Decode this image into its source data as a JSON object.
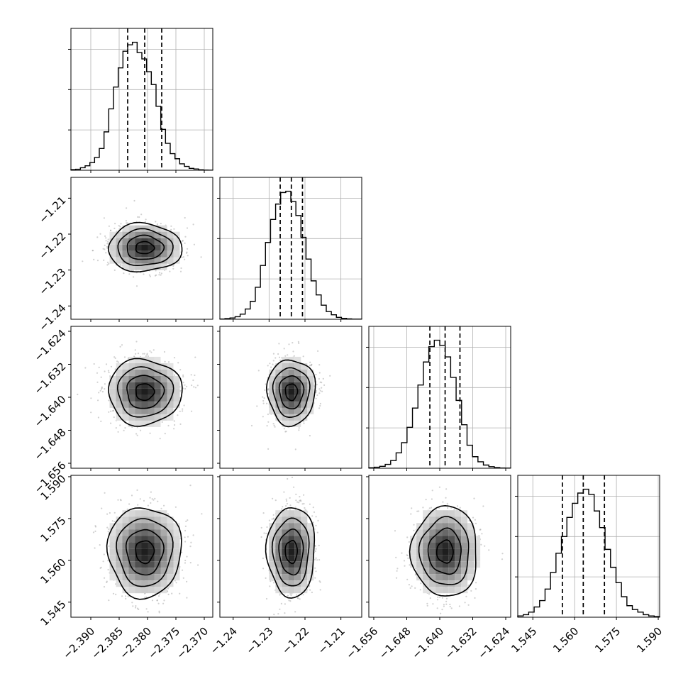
{
  "chart_data": {
    "type": "corner",
    "variables": [
      {
        "index": 0,
        "range": [
          -2.3935,
          -2.3685
        ],
        "ticks": [
          -2.39,
          -2.385,
          -2.38,
          -2.375,
          -2.37
        ],
        "tick_labels": [
          "−2.390",
          "−2.385",
          "−2.380",
          "−2.375",
          "−2.370"
        ],
        "quantiles": [
          -2.3835,
          -2.3805,
          -2.3775
        ],
        "center": -2.3805,
        "sigma": 0.003
      },
      {
        "index": 1,
        "range": [
          -1.2437,
          -1.2042
        ],
        "ticks": [
          -1.24,
          -1.23,
          -1.22,
          -1.21
        ],
        "tick_labels": [
          "−1.24",
          "−1.23",
          "−1.22",
          "−1.21"
        ],
        "quantiles": [
          -1.2269,
          -1.2238,
          -1.2207
        ],
        "center": -1.2238,
        "sigma": 0.0031
      },
      {
        "index": 2,
        "range": [
          -1.6572,
          -1.6228
        ],
        "ticks": [
          -1.656,
          -1.648,
          -1.64,
          -1.632,
          -1.624
        ],
        "tick_labels": [
          "−1.656",
          "−1.648",
          "−1.640",
          "−1.632",
          "−1.624"
        ],
        "quantiles": [
          -1.6424,
          -1.6387,
          -1.6351
        ],
        "center": -1.6387,
        "sigma": 0.0037
      },
      {
        "index": 3,
        "range": [
          1.5396,
          1.5905
        ],
        "ticks": [
          1.545,
          1.56,
          1.575,
          1.59
        ],
        "tick_labels": [
          "1.545",
          "1.560",
          "1.575",
          "1.590"
        ],
        "quantiles": [
          1.5556,
          1.5631,
          1.5707
        ],
        "center": 1.5631,
        "sigma": 0.0075
      }
    ],
    "histograms": [
      {
        "var": 0,
        "counts": [
          0.005,
          0.008,
          0.02,
          0.035,
          0.06,
          0.1,
          0.17,
          0.3,
          0.48,
          0.65,
          0.8,
          0.93,
          0.98,
          1.0,
          0.92,
          0.87,
          0.77,
          0.67,
          0.5,
          0.32,
          0.21,
          0.13,
          0.09,
          0.05,
          0.03,
          0.015,
          0.01,
          0.004,
          0.002,
          0.001
        ]
      },
      {
        "var": 1,
        "counts": [
          0.002,
          0.005,
          0.01,
          0.02,
          0.04,
          0.08,
          0.14,
          0.25,
          0.42,
          0.6,
          0.78,
          0.9,
          0.99,
          1.0,
          0.92,
          0.81,
          0.64,
          0.47,
          0.3,
          0.19,
          0.11,
          0.06,
          0.035,
          0.015,
          0.007,
          0.003,
          0.001,
          0.001
        ]
      },
      {
        "var": 2,
        "counts": [
          0.004,
          0.008,
          0.015,
          0.03,
          0.06,
          0.12,
          0.2,
          0.32,
          0.47,
          0.65,
          0.83,
          0.95,
          1.0,
          0.96,
          0.87,
          0.71,
          0.53,
          0.34,
          0.18,
          0.09,
          0.05,
          0.025,
          0.012,
          0.005,
          0.002,
          0.001
        ]
      },
      {
        "var": 3,
        "counts": [
          0.01,
          0.02,
          0.04,
          0.08,
          0.13,
          0.22,
          0.35,
          0.5,
          0.63,
          0.78,
          0.89,
          0.97,
          1.0,
          0.96,
          0.83,
          0.7,
          0.53,
          0.39,
          0.27,
          0.16,
          0.09,
          0.06,
          0.04,
          0.02,
          0.01,
          0.005
        ]
      }
    ],
    "pairs": [
      [
        1,
        0
      ],
      [
        2,
        0
      ],
      [
        2,
        1
      ],
      [
        3,
        0
      ],
      [
        3,
        1
      ],
      [
        3,
        2
      ]
    ],
    "contour_levels_sigma": [
      0.5,
      1.0,
      1.5,
      2.0
    ],
    "grid": true,
    "colors": {
      "line": "#000000",
      "points": "#9a9a9a",
      "grid": "#b0b0b0"
    }
  }
}
